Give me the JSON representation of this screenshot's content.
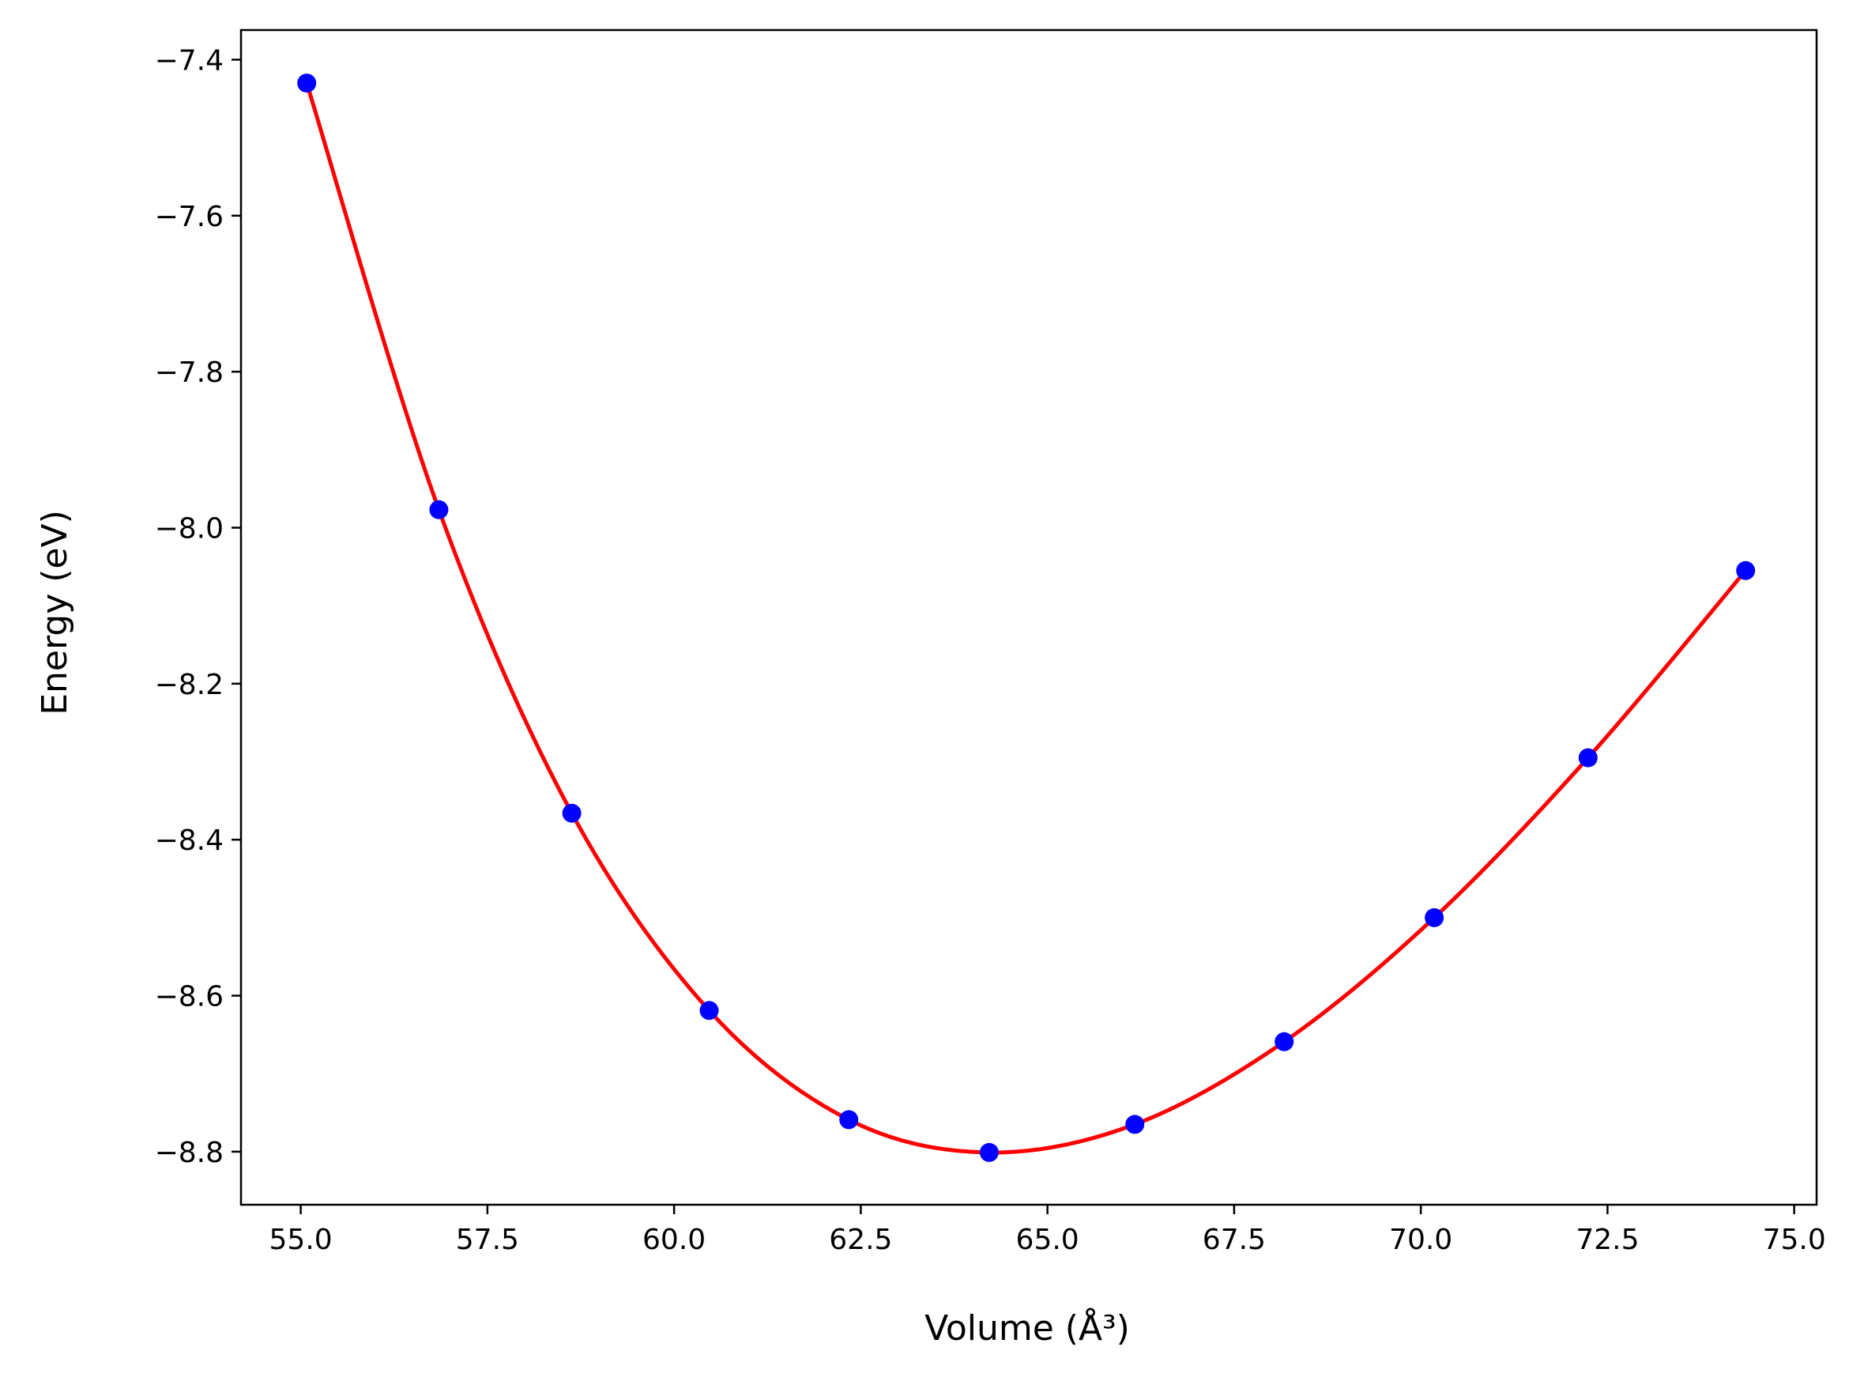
{
  "chart_data": {
    "type": "scatter",
    "title": "",
    "xlabel": "Volume (Å³)",
    "ylabel": "Energy (eV)",
    "xlim": [
      54.2,
      75.3
    ],
    "ylim": [
      -8.868,
      -7.362
    ],
    "xticks": [
      55.0,
      57.5,
      60.0,
      62.5,
      65.0,
      67.5,
      70.0,
      72.5,
      75.0
    ],
    "xtick_labels": [
      "55.0",
      "57.5",
      "60.0",
      "62.5",
      "65.0",
      "67.5",
      "70.0",
      "72.5",
      "75.0"
    ],
    "yticks": [
      -7.4,
      -7.6,
      -7.8,
      -8.0,
      -8.2,
      -8.4,
      -8.6,
      -8.8
    ],
    "ytick_labels": [
      "−7.4",
      "−7.6",
      "−7.8",
      "−8.0",
      "−8.2",
      "−8.4",
      "−8.6",
      "−8.8"
    ],
    "grid": false,
    "legend": false,
    "series": [
      {
        "kind": "points",
        "color": "#0000ff",
        "x": [
          55.08,
          56.85,
          58.63,
          60.47,
          62.34,
          64.22,
          66.17,
          68.17,
          70.18,
          72.24,
          74.35
        ],
        "y": [
          -7.43,
          -7.977,
          -8.366,
          -8.619,
          -8.759,
          -8.801,
          -8.765,
          -8.659,
          -8.5,
          -8.295,
          -8.055
        ]
      },
      {
        "kind": "fit-line",
        "color": "#ff0000",
        "x": [
          55.08,
          56.85,
          58.63,
          60.47,
          62.34,
          64.22,
          66.17,
          68.17,
          70.18,
          72.24,
          74.35
        ],
        "y": [
          -7.43,
          -7.977,
          -8.366,
          -8.619,
          -8.759,
          -8.801,
          -8.765,
          -8.659,
          -8.5,
          -8.295,
          -8.055
        ]
      }
    ]
  }
}
